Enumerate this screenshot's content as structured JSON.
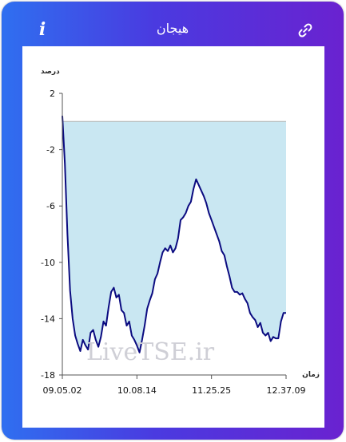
{
  "header": {
    "title": "هیجان",
    "info_label": "i",
    "info_icon": "info-icon",
    "link_icon": "link-icon"
  },
  "colors": {
    "gradient_start": "#2f6ff0",
    "gradient_end": "#6a22d0",
    "area_fill": "#c9e7f2",
    "line": "#0b0b80",
    "baseline": "#b0b0b0"
  },
  "watermark": "LiveTSE.ir",
  "chart_data": {
    "type": "area",
    "ylabel": "درصد",
    "xlabel": "زمان",
    "ylim": [
      -18,
      2
    ],
    "yticks": [
      "2",
      "-2",
      "-6",
      "-10",
      "-14",
      "-18"
    ],
    "ytick_values": [
      2,
      -2,
      -6,
      -10,
      -14,
      -18
    ],
    "xticks": [
      "09.05.02",
      "10.08.14",
      "11.25.25",
      "12.37.09"
    ],
    "baseline_value": 0,
    "grid": false,
    "series": [
      {
        "values": [
          0.4,
          -3,
          -8,
          -12,
          -14,
          -15.2,
          -15.8,
          -16.3,
          -15.5,
          -15.9,
          -16.2,
          -15.0,
          -14.8,
          -15.5,
          -16.0,
          -15.3,
          -14.2,
          -14.5,
          -13.2,
          -12.1,
          -11.8,
          -12.5,
          -12.3,
          -13.4,
          -13.6,
          -14.5,
          -14.2,
          -15.2,
          -15.5,
          -15.9,
          -16.4,
          -15.5,
          -14.5,
          -13.3,
          -12.7,
          -12.2,
          -11.2,
          -10.8,
          -10.0,
          -9.3,
          -9.0,
          -9.2,
          -8.8,
          -9.3,
          -9.0,
          -8.3,
          -7.0,
          -6.8,
          -6.5,
          -6.0,
          -5.7,
          -4.8,
          -4.1,
          -4.5,
          -4.9,
          -5.3,
          -5.8,
          -6.5,
          -7.0,
          -7.5,
          -8.0,
          -8.5,
          -9.2,
          -9.5,
          -10.3,
          -11.0,
          -11.8,
          -12.1,
          -12.1,
          -12.3,
          -12.2,
          -12.6,
          -12.9,
          -13.6,
          -13.9,
          -14.1,
          -14.6,
          -14.3,
          -15.0,
          -15.2,
          -15.0,
          -15.6,
          -15.3,
          -15.4,
          -15.4,
          -14.2,
          -13.6,
          -13.6
        ]
      }
    ]
  }
}
